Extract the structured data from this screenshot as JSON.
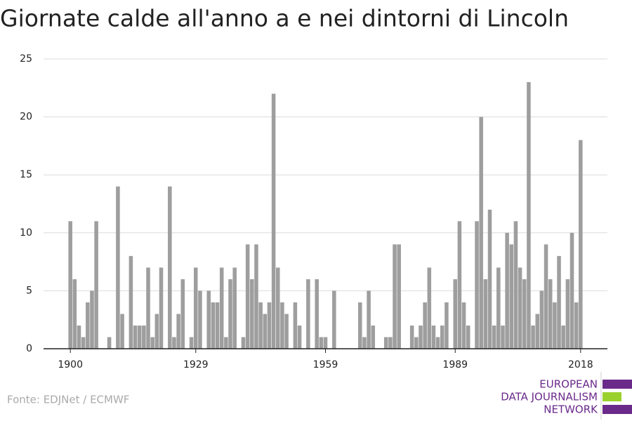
{
  "chart_data": {
    "type": "bar",
    "title": "Giornate calde all'anno a e nei dintorni di Lincoln",
    "source": "Fonte: EDJNet / ECMWF",
    "logo": [
      "EUROPEAN",
      "DATA JOURNALISM",
      "NETWORK"
    ],
    "color": "#9e9e9e",
    "x": [
      1900,
      1901,
      1902,
      1903,
      1904,
      1905,
      1906,
      1907,
      1908,
      1909,
      1910,
      1911,
      1912,
      1913,
      1914,
      1915,
      1916,
      1917,
      1918,
      1919,
      1920,
      1921,
      1922,
      1923,
      1924,
      1925,
      1926,
      1927,
      1928,
      1929,
      1930,
      1931,
      1932,
      1933,
      1934,
      1935,
      1936,
      1937,
      1938,
      1939,
      1940,
      1941,
      1942,
      1943,
      1944,
      1945,
      1946,
      1947,
      1948,
      1949,
      1950,
      1951,
      1952,
      1953,
      1954,
      1955,
      1956,
      1957,
      1958,
      1959,
      1960,
      1961,
      1962,
      1963,
      1964,
      1965,
      1966,
      1967,
      1968,
      1969,
      1970,
      1971,
      1972,
      1973,
      1974,
      1975,
      1976,
      1977,
      1978,
      1979,
      1980,
      1981,
      1982,
      1983,
      1984,
      1985,
      1986,
      1987,
      1988,
      1989,
      1990,
      1991,
      1992,
      1993,
      1994,
      1995,
      1996,
      1997,
      1998,
      1999,
      2000,
      2001,
      2002,
      2003,
      2004,
      2005,
      2006,
      2007,
      2008,
      2009,
      2010,
      2011,
      2012,
      2013,
      2014,
      2015,
      2016,
      2017,
      2018
    ],
    "values": [
      11,
      6,
      2,
      1,
      4,
      5,
      11,
      0,
      0,
      1,
      0,
      14,
      3,
      0,
      8,
      2,
      2,
      2,
      7,
      1,
      3,
      7,
      0,
      14,
      1,
      3,
      6,
      0,
      1,
      7,
      5,
      0,
      5,
      4,
      4,
      7,
      1,
      6,
      7,
      0,
      1,
      9,
      6,
      9,
      4,
      3,
      4,
      22,
      7,
      4,
      3,
      0,
      4,
      2,
      0,
      6,
      0,
      6,
      1,
      1,
      0,
      5,
      0,
      0,
      0,
      0,
      0,
      4,
      1,
      5,
      2,
      0,
      0,
      1,
      1,
      9,
      9,
      0,
      0,
      2,
      1,
      2,
      4,
      7,
      2,
      1,
      2,
      4,
      0,
      6,
      11,
      4,
      2,
      0,
      11,
      20,
      6,
      12,
      2,
      7,
      2,
      10,
      9,
      11,
      7,
      6,
      23,
      2,
      3,
      5,
      9,
      6,
      4,
      8,
      2,
      6,
      10,
      4,
      18
    ],
    "xlim": [
      1893.8,
      2024.2
    ],
    "xticks": [
      1900,
      1929,
      1959,
      1989,
      2018
    ],
    "ylim": [
      0,
      25
    ],
    "yticks": [
      0,
      5,
      10,
      15,
      20,
      25
    ],
    "grid": true
  }
}
